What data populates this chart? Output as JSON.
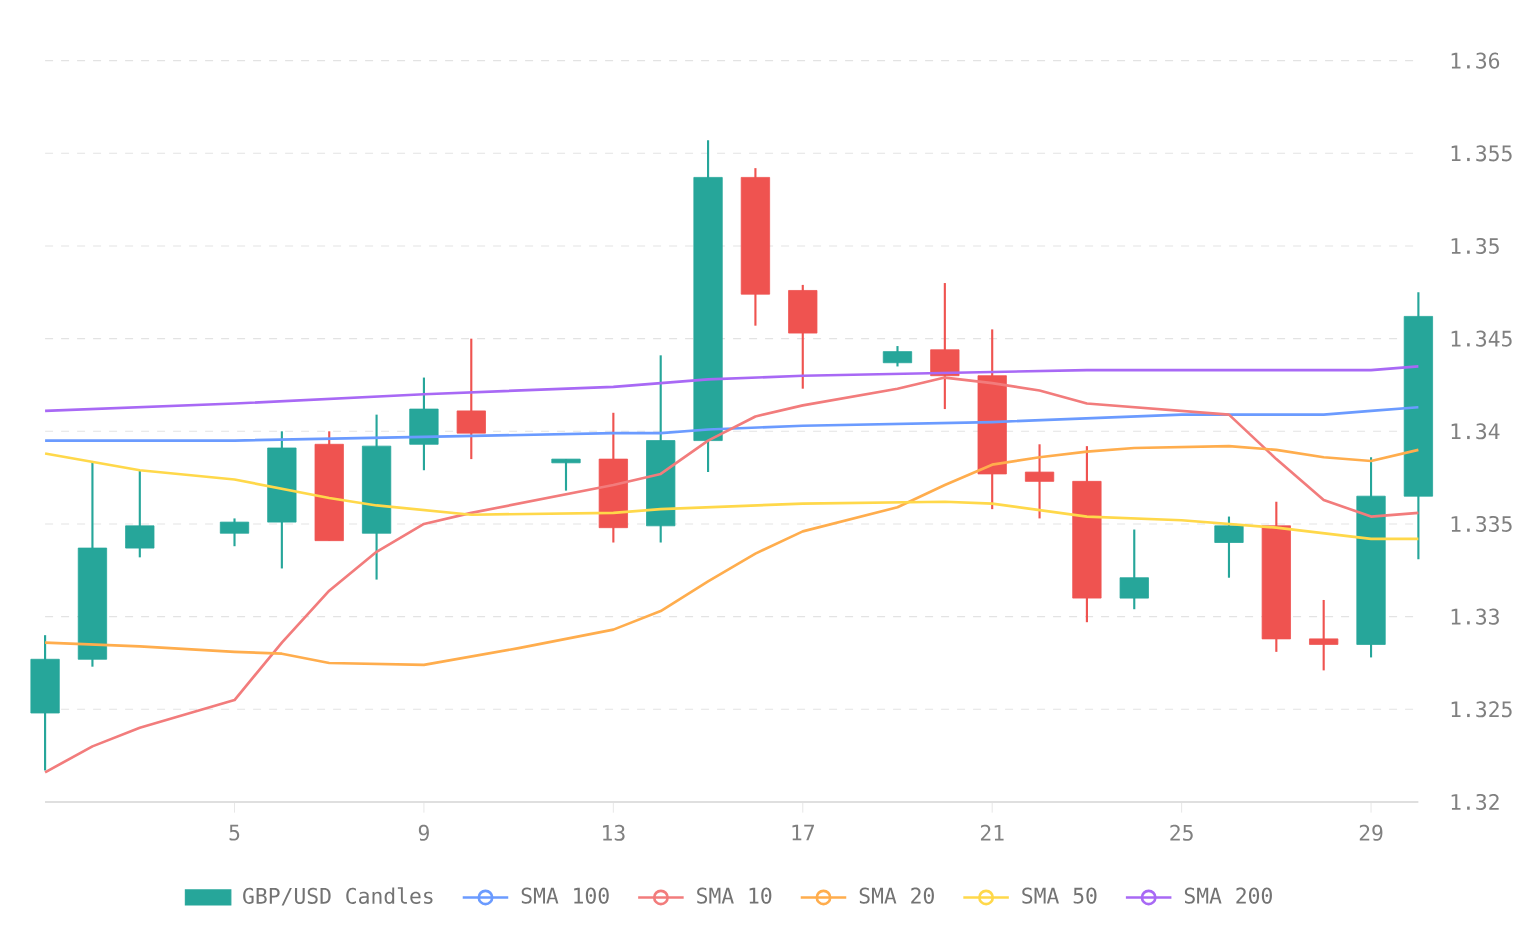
{
  "chart_data": {
    "type": "candlestick",
    "xlim": [
      1,
      30
    ],
    "xticks": [
      5,
      9,
      13,
      17,
      21,
      25,
      29
    ],
    "ylim": [
      1.32,
      1.36
    ],
    "yticks": [
      1.32,
      1.325,
      1.33,
      1.335,
      1.34,
      1.345,
      1.35,
      1.355,
      1.36
    ],
    "grid": "y",
    "legend": "bottom",
    "series": [
      {
        "name": "GBP/USD Candles",
        "color": "#26a69a",
        "x": [
          1,
          2,
          3,
          5,
          6,
          7,
          8,
          9,
          10,
          12,
          13,
          14,
          15,
          16,
          17,
          19,
          20,
          21,
          22,
          23,
          24,
          26,
          27,
          28,
          29,
          30
        ],
        "ohlc": [
          [
            1.3248,
            1.329,
            1.3217,
            1.3277
          ],
          [
            1.3277,
            1.3384,
            1.3273,
            1.3337
          ],
          [
            1.3337,
            1.3379,
            1.3332,
            1.3349
          ],
          [
            1.3345,
            1.3353,
            1.3338,
            1.3351
          ],
          [
            1.3351,
            1.34,
            1.3326,
            1.3391
          ],
          [
            1.3393,
            1.34,
            1.3341,
            1.3341
          ],
          [
            1.3345,
            1.3409,
            1.332,
            1.3392
          ],
          [
            1.3393,
            1.3429,
            1.3379,
            1.3412
          ],
          [
            1.3411,
            1.345,
            1.3385,
            1.3399
          ],
          [
            1.3383,
            1.3385,
            1.3368,
            1.3385
          ],
          [
            1.3385,
            1.341,
            1.334,
            1.3348
          ],
          [
            1.3349,
            1.3441,
            1.334,
            1.3395
          ],
          [
            1.3395,
            1.3557,
            1.3378,
            1.3537
          ],
          [
            1.3537,
            1.3542,
            1.3457,
            1.3474
          ],
          [
            1.3476,
            1.3479,
            1.3423,
            1.3453
          ],
          [
            1.3437,
            1.3446,
            1.3435,
            1.3443
          ],
          [
            1.3444,
            1.348,
            1.3412,
            1.343
          ],
          [
            1.343,
            1.3455,
            1.3358,
            1.3377
          ],
          [
            1.3378,
            1.3393,
            1.3353,
            1.3373
          ],
          [
            1.3373,
            1.3392,
            1.3297,
            1.331
          ],
          [
            1.331,
            1.3347,
            1.3304,
            1.3321
          ],
          [
            1.334,
            1.3354,
            1.3321,
            1.3349
          ],
          [
            1.3349,
            1.3362,
            1.3281,
            1.3288
          ],
          [
            1.3288,
            1.3309,
            1.3271,
            1.3285
          ],
          [
            1.3285,
            1.3386,
            1.3278,
            1.3365
          ],
          [
            1.3365,
            1.3475,
            1.3331,
            1.3462
          ]
        ],
        "colors": [
          "#26a69a",
          "#26a69a",
          "#26a69a",
          "#26a69a",
          "#26a69a",
          "#ef5350",
          "#26a69a",
          "#26a69a",
          "#ef5350",
          "#26a69a",
          "#ef5350",
          "#26a69a",
          "#26a69a",
          "#ef5350",
          "#ef5350",
          "#26a69a",
          "#ef5350",
          "#ef5350",
          "#ef5350",
          "#ef5350",
          "#26a69a",
          "#26a69a",
          "#ef5350",
          "#ef5350",
          "#26a69a",
          "#26a69a"
        ]
      },
      {
        "name": "SMA 100",
        "type": "line",
        "color": "#6b9bff",
        "x": [
          1,
          5,
          9,
          13,
          14,
          15,
          17,
          21,
          25,
          28,
          29,
          30
        ],
        "values": [
          1.3395,
          1.3395,
          1.3397,
          1.3399,
          1.3399,
          1.3401,
          1.3403,
          1.3405,
          1.3409,
          1.3409,
          1.3411,
          1.3413
        ]
      },
      {
        "name": "SMA 10",
        "type": "line",
        "color": "#f27c7c",
        "x": [
          1,
          2,
          3,
          5,
          6,
          7,
          8,
          9,
          10,
          13,
          14,
          15,
          16,
          17,
          19,
          20,
          21,
          22,
          23,
          26,
          27,
          28,
          29,
          30
        ],
        "values": [
          1.3216,
          1.323,
          1.324,
          1.3255,
          1.3286,
          1.3314,
          1.3335,
          1.335,
          1.3356,
          1.3371,
          1.3377,
          1.3395,
          1.3408,
          1.3414,
          1.3423,
          1.3429,
          1.3426,
          1.3422,
          1.3415,
          1.3409,
          1.3385,
          1.3363,
          1.3354,
          1.3356
        ]
      },
      {
        "name": "SMA 20",
        "type": "line",
        "color": "#ffad4d",
        "x": [
          1,
          3,
          5,
          6,
          7,
          9,
          11,
          13,
          14,
          15,
          16,
          17,
          19,
          20,
          21,
          22,
          23,
          24,
          26,
          27,
          28,
          29,
          30
        ],
        "values": [
          1.3286,
          1.3284,
          1.3281,
          1.328,
          1.3275,
          1.3274,
          1.3283,
          1.3293,
          1.3303,
          1.3319,
          1.3334,
          1.3346,
          1.3359,
          1.3371,
          1.3382,
          1.3386,
          1.3389,
          1.3391,
          1.3392,
          1.339,
          1.3386,
          1.3384,
          1.339
        ]
      },
      {
        "name": "SMA 50",
        "type": "line",
        "color": "#ffd84a",
        "x": [
          1,
          3,
          5,
          7,
          8,
          10,
          13,
          14,
          17,
          20,
          21,
          23,
          25,
          27,
          29,
          30
        ],
        "values": [
          1.3388,
          1.3379,
          1.3374,
          1.3364,
          1.336,
          1.3355,
          1.3356,
          1.3358,
          1.3361,
          1.3362,
          1.3361,
          1.3354,
          1.3352,
          1.3348,
          1.3342,
          1.3342
        ]
      },
      {
        "name": "SMA 200",
        "type": "line",
        "color": "#a869f5",
        "x": [
          1,
          5,
          9,
          13,
          15,
          17,
          21,
          23,
          29,
          30
        ],
        "values": [
          1.3411,
          1.3415,
          1.342,
          1.3424,
          1.3428,
          1.343,
          1.3432,
          1.3433,
          1.3433,
          1.3435
        ]
      }
    ]
  }
}
